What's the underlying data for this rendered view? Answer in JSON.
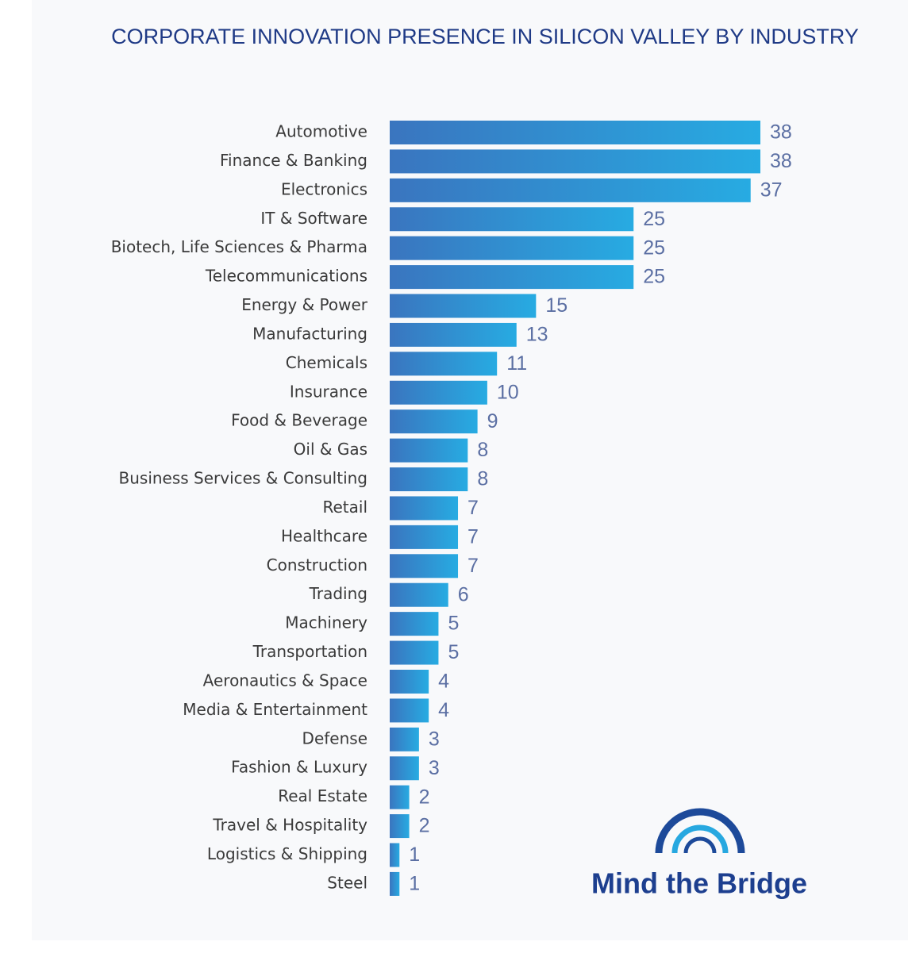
{
  "chart_data": {
    "type": "bar",
    "orientation": "horizontal",
    "title": "CORPORATE INNOVATION PRESENCE IN SILICON VALLEY BY INDUSTRY",
    "categories": [
      "Automotive",
      "Finance & Banking",
      "Electronics",
      "IT & Software",
      "Biotech, Life Sciences & Pharma",
      "Telecommunications",
      "Energy & Power",
      "Manufacturing",
      "Chemicals",
      "Insurance",
      "Food & Beverage",
      "Oil & Gas",
      "Business Services & Consulting",
      "Retail",
      "Healthcare",
      "Construction",
      "Trading",
      "Machinery",
      "Transportation",
      "Aeronautics & Space",
      "Media & Entertainment",
      "Defense",
      "Fashion & Luxury",
      "Real Estate",
      "Travel & Hospitality",
      "Logistics & Shipping",
      "Steel"
    ],
    "values": [
      38,
      38,
      37,
      25,
      25,
      25,
      15,
      13,
      11,
      10,
      9,
      8,
      8,
      7,
      7,
      7,
      6,
      5,
      5,
      4,
      4,
      3,
      3,
      2,
      2,
      1,
      1
    ],
    "gradient": [
      "#3a75bf",
      "#27abe2"
    ],
    "logo": "Mind the Bridge"
  }
}
